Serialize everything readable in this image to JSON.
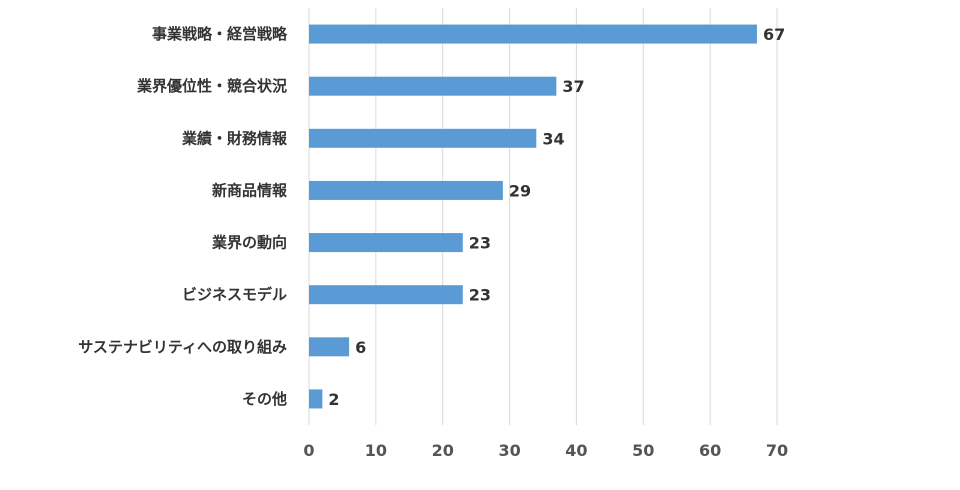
{
  "chart_data": {
    "type": "bar",
    "orientation": "horizontal",
    "title": "",
    "xlabel": "",
    "ylabel": "",
    "categories": [
      "事業戦略・経営戦略",
      "業界優位性・競合状況",
      "業績・財務情報",
      "新商品情報",
      "業界の動向",
      "ビジネスモデル",
      "サステナビリティへの取り組み",
      "その他"
    ],
    "values": [
      67,
      37,
      34,
      29,
      23,
      23,
      6,
      2
    ],
    "xlim": [
      0,
      70
    ],
    "xticks": [
      0,
      10,
      20,
      30,
      40,
      50,
      60,
      70
    ],
    "grid": "vertical",
    "legend": "none",
    "bar_color": "#5b9bd5",
    "show_data_labels": true
  }
}
